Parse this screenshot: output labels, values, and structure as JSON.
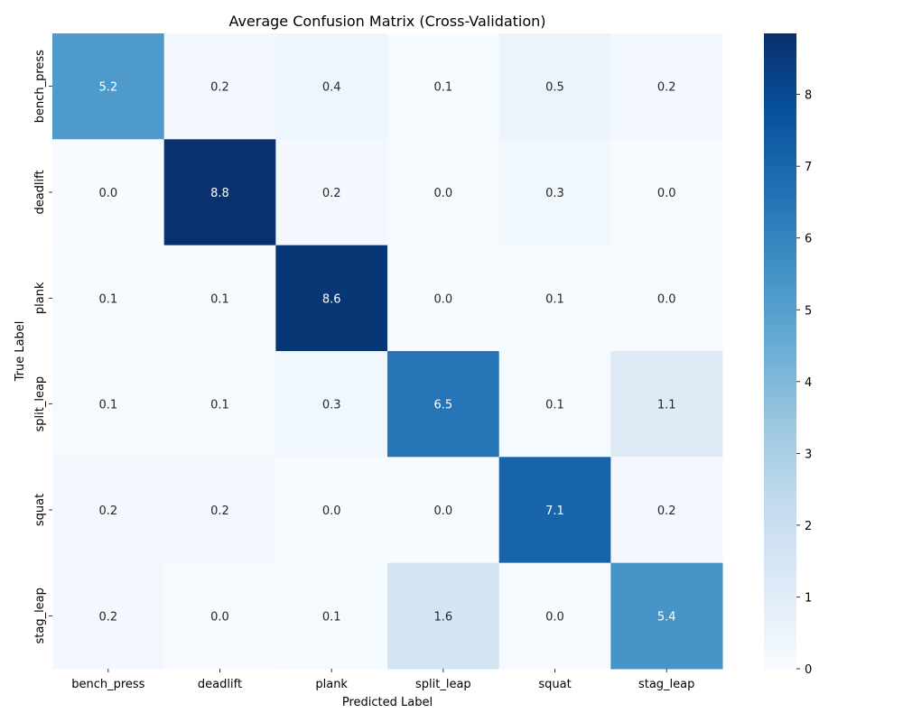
{
  "chart_data": {
    "type": "heatmap",
    "title": "Average Confusion Matrix (Cross-Validation)",
    "xlabel": "Predicted Label",
    "ylabel": "True Label",
    "x_categories": [
      "bench_press",
      "deadlift",
      "plank",
      "split_leap",
      "squat",
      "stag_leap"
    ],
    "y_categories": [
      "bench_press",
      "deadlift",
      "plank",
      "split_leap",
      "squat",
      "stag_leap"
    ],
    "values": [
      [
        5.2,
        0.2,
        0.4,
        0.1,
        0.5,
        0.2
      ],
      [
        0.0,
        8.8,
        0.2,
        0.0,
        0.3,
        0.0
      ],
      [
        0.1,
        0.1,
        8.6,
        0.0,
        0.1,
        0.0
      ],
      [
        0.1,
        0.1,
        0.3,
        6.5,
        0.1,
        1.1
      ],
      [
        0.2,
        0.2,
        0.0,
        0.0,
        7.1,
        0.2
      ],
      [
        0.2,
        0.0,
        0.1,
        1.6,
        0.0,
        5.4
      ]
    ],
    "colorbar": {
      "colormap": "Blues",
      "range": [
        0,
        8.85
      ],
      "ticks": [
        0,
        1,
        2,
        3,
        4,
        5,
        6,
        7,
        8
      ]
    },
    "annotations": "cell values shown with one decimal"
  }
}
